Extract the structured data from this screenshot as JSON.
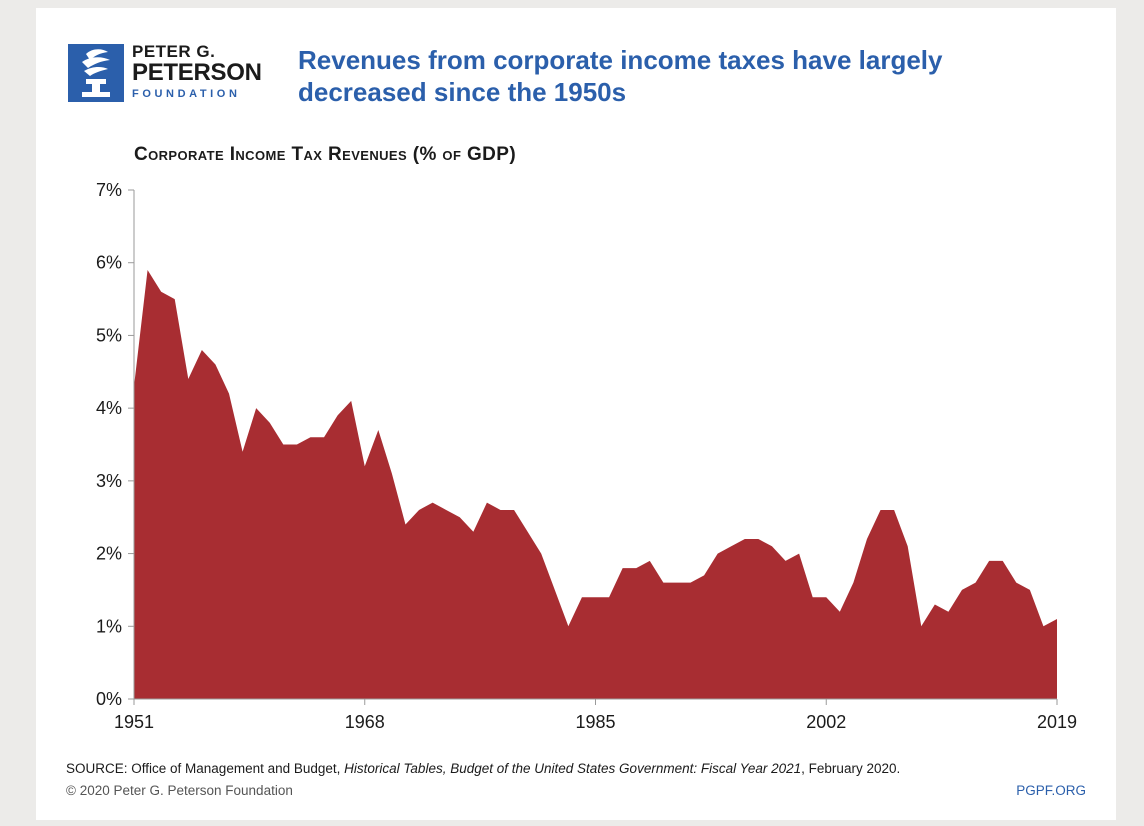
{
  "logo": {
    "line1": "PETER G.",
    "line2": "PETERSON",
    "line3": "FOUNDATION",
    "icon": "torch-icon",
    "color": "#2b5fab"
  },
  "headline": "Revenues from corporate income taxes have largely decreased since the 1950s",
  "chart_data": {
    "type": "area",
    "title": "Corporate Income Tax Revenues (% of GDP)",
    "xlabel": "",
    "ylabel": "",
    "x": [
      1951,
      1952,
      1953,
      1954,
      1955,
      1956,
      1957,
      1958,
      1959,
      1960,
      1961,
      1962,
      1963,
      1964,
      1965,
      1966,
      1967,
      1968,
      1969,
      1970,
      1971,
      1972,
      1973,
      1974,
      1975,
      1976,
      1977,
      1978,
      1979,
      1980,
      1981,
      1982,
      1983,
      1984,
      1985,
      1986,
      1987,
      1988,
      1989,
      1990,
      1991,
      1992,
      1993,
      1994,
      1995,
      1996,
      1997,
      1998,
      1999,
      2000,
      2001,
      2002,
      2003,
      2004,
      2005,
      2006,
      2007,
      2008,
      2009,
      2010,
      2011,
      2012,
      2013,
      2014,
      2015,
      2016,
      2017,
      2018,
      2019
    ],
    "series": [
      {
        "values": [
          4.3,
          5.9,
          5.6,
          5.5,
          4.4,
          4.8,
          4.6,
          4.2,
          3.4,
          4.0,
          3.8,
          3.5,
          3.5,
          3.6,
          3.6,
          3.9,
          4.1,
          3.2,
          3.7,
          3.1,
          2.4,
          2.6,
          2.7,
          2.6,
          2.5,
          2.3,
          2.7,
          2.6,
          2.6,
          2.3,
          2.0,
          1.5,
          1.0,
          1.4,
          1.4,
          1.4,
          1.8,
          1.8,
          1.9,
          1.6,
          1.6,
          1.6,
          1.7,
          2.0,
          2.1,
          2.2,
          2.2,
          2.1,
          1.9,
          2.0,
          1.4,
          1.4,
          1.2,
          1.6,
          2.2,
          2.6,
          2.6,
          2.1,
          1.0,
          1.3,
          1.2,
          1.5,
          1.6,
          1.9,
          1.9,
          1.6,
          1.5,
          1.0,
          1.1
        ]
      }
    ],
    "x_ticks": [
      "1951",
      "1968",
      "1985",
      "2002",
      "2019"
    ],
    "y_ticks": [
      "0%",
      "1%",
      "2%",
      "3%",
      "4%",
      "5%",
      "6%",
      "7%"
    ],
    "ylim": [
      0,
      7
    ],
    "xlim": [
      1951,
      2019
    ],
    "grid": false,
    "fill_color": "#a82d32"
  },
  "footer": {
    "source_prefix": "SOURCE: Office of Management and Budget, ",
    "source_italic": "Historical Tables, Budget of the United States Government: Fiscal Year 2021",
    "source_suffix": ", February 2020.",
    "copyright": "© 2020 Peter G. Peterson Foundation",
    "site": "PGPF.ORG"
  }
}
